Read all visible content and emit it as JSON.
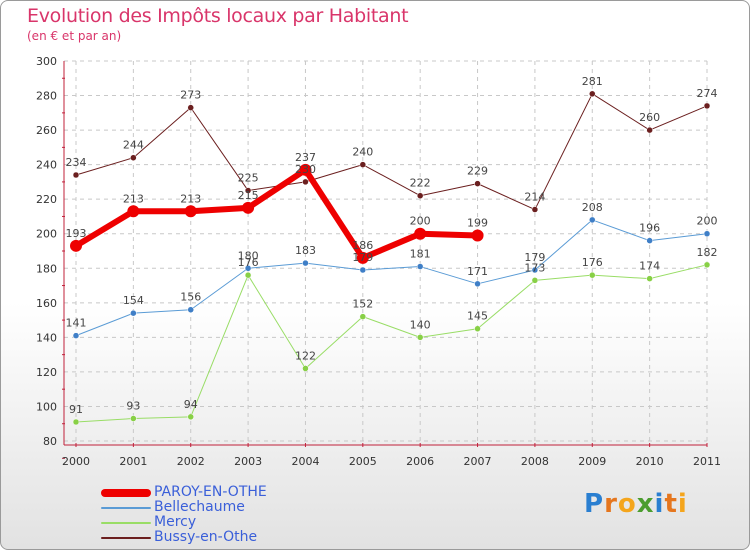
{
  "title": "Evolution des Impôts locaux par Habitant",
  "subtitle": "(en € et par an)",
  "logo": {
    "letters": [
      "P",
      "r",
      "o",
      "x",
      "i",
      "t",
      "i"
    ],
    "colors": [
      "#2a7fd1",
      "#e5761e",
      "#f4a51c",
      "#4b9d2f",
      "#2a7fd1",
      "#e5761e",
      "#f4a51c"
    ]
  },
  "chart_data": {
    "type": "line",
    "title": "Evolution des Impôts locaux par Habitant",
    "subtitle": "(en € et par an)",
    "categories": [
      "2000",
      "2001",
      "2002",
      "2003",
      "2004",
      "2005",
      "2006",
      "2007",
      "2008",
      "2009",
      "2010",
      "2011"
    ],
    "ylim": [
      80,
      300
    ],
    "yticks": [
      80,
      100,
      120,
      140,
      160,
      180,
      200,
      220,
      240,
      260,
      280,
      300
    ],
    "grid": true,
    "legend_position": "bottom-left",
    "series": [
      {
        "name": "Bussy-en-Othe",
        "color": "#6b1f1f",
        "width": 1,
        "values": [
          234,
          244,
          273,
          225,
          230,
          240,
          222,
          229,
          214,
          281,
          260,
          274
        ],
        "labels": [
          "234",
          "244",
          "273",
          "225",
          "230",
          "240",
          "222",
          "229",
          "214",
          "281",
          "260",
          "274"
        ]
      },
      {
        "name": "Bellechaume",
        "color": "#5a9bd5",
        "width": 1,
        "values": [
          141,
          154,
          156,
          180,
          183,
          179,
          181,
          171,
          179,
          208,
          196,
          200
        ],
        "labels": [
          "141",
          "154",
          "156",
          "180",
          "183",
          "179",
          "181",
          "171",
          "179",
          "208",
          "196",
          "200"
        ]
      },
      {
        "name": "Mercy",
        "color": "#99dd66",
        "width": 1,
        "values": [
          91,
          93,
          94,
          176,
          122,
          152,
          140,
          145,
          173,
          176,
          174,
          182
        ],
        "labels": [
          "91",
          "93",
          "94",
          "176",
          "122",
          "152",
          "140",
          "145",
          "173",
          "176",
          "174",
          "182"
        ]
      },
      {
        "name": "PAROY-EN-OTHE",
        "color": "#ee0000",
        "width": 6,
        "values": [
          193,
          213,
          213,
          215,
          237,
          186,
          200,
          199,
          null,
          null,
          null,
          null
        ],
        "labels": [
          "193",
          "213",
          "213",
          "215",
          "237",
          "186",
          "200",
          "199",
          null,
          null,
          null,
          null
        ]
      }
    ],
    "legend": [
      {
        "name": "PAROY-EN-OTHE",
        "color": "#ee0000",
        "thickness": 8
      },
      {
        "name": "Bellechaume",
        "color": "#5a9bd5",
        "thickness": 2
      },
      {
        "name": "Mercy",
        "color": "#99dd66",
        "thickness": 2
      },
      {
        "name": "Bussy-en-Othe",
        "color": "#6b1f1f",
        "thickness": 2
      }
    ]
  }
}
